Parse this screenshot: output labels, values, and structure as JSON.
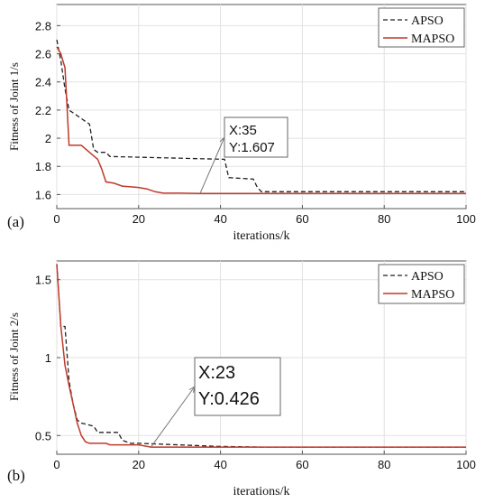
{
  "chart_data": [
    {
      "type": "line",
      "panel_label": "(a)",
      "xlabel": "iterations/k",
      "ylabel": "Fitness of Joint 1/s",
      "xlim": [
        0,
        100
      ],
      "ylim": [
        1.5,
        2.95
      ],
      "xticks": [
        0,
        20,
        40,
        60,
        80,
        100
      ],
      "yticks": [
        1.6,
        1.8,
        2.0,
        2.2,
        2.4,
        2.6,
        2.8
      ],
      "xtick_labels": [
        "0",
        "20",
        "40",
        "60",
        "80",
        "100"
      ],
      "ytick_labels": [
        "1.6",
        "1.8",
        "2",
        "2.2",
        "2.4",
        "2.6",
        "2.8"
      ],
      "grid": true,
      "legend_position": "top-right",
      "series": [
        {
          "name": "APSO",
          "color": "#222222",
          "dash": "dashed",
          "x": [
            0,
            1,
            2,
            3,
            8,
            9,
            10,
            12,
            13,
            41,
            42,
            48,
            49,
            50,
            100
          ],
          "y": [
            2.7,
            2.55,
            2.35,
            2.2,
            2.1,
            1.92,
            1.9,
            1.9,
            1.87,
            1.85,
            1.72,
            1.71,
            1.65,
            1.62,
            1.62
          ]
        },
        {
          "name": "MAPSO",
          "color": "#c0392b",
          "dash": "solid",
          "x": [
            0,
            1,
            2,
            3,
            6,
            8,
            10,
            11,
            12,
            14,
            16,
            20,
            22,
            24,
            26,
            30,
            35,
            100
          ],
          "y": [
            2.65,
            2.6,
            2.5,
            1.95,
            1.95,
            1.9,
            1.85,
            1.78,
            1.69,
            1.68,
            1.66,
            1.65,
            1.64,
            1.62,
            1.61,
            1.61,
            1.607,
            1.607
          ]
        }
      ],
      "annotation": {
        "x": 35,
        "y": 1.607,
        "line1": "X:35",
        "line2": "Y:1.607"
      }
    },
    {
      "type": "line",
      "panel_label": "(b)",
      "xlabel": "iterations/k",
      "ylabel": "Fitness of Joint 2/s",
      "xlim": [
        0,
        100
      ],
      "ylim": [
        0.38,
        1.62
      ],
      "xticks": [
        0,
        20,
        40,
        60,
        80,
        100
      ],
      "yticks": [
        0.5,
        1.0,
        1.5
      ],
      "xtick_labels": [
        "0",
        "20",
        "40",
        "60",
        "80",
        "100"
      ],
      "ytick_labels": [
        "0.5",
        "1",
        "1.5"
      ],
      "grid": true,
      "legend_position": "top-right",
      "series": [
        {
          "name": "APSO",
          "color": "#222222",
          "dash": "dashed",
          "x": [
            0,
            1,
            2,
            3,
            4,
            5,
            6,
            9,
            10,
            15,
            16,
            18,
            20,
            40,
            50,
            100
          ],
          "y": [
            1.6,
            1.2,
            1.2,
            0.85,
            0.7,
            0.6,
            0.58,
            0.56,
            0.52,
            0.52,
            0.47,
            0.45,
            0.45,
            0.43,
            0.426,
            0.426
          ]
        },
        {
          "name": "MAPSO",
          "color": "#c0392b",
          "dash": "solid",
          "x": [
            0,
            1,
            2,
            3,
            4,
            5,
            6,
            7,
            8,
            12,
            13,
            20,
            23,
            100
          ],
          "y": [
            1.6,
            1.2,
            0.95,
            0.82,
            0.7,
            0.58,
            0.5,
            0.46,
            0.45,
            0.45,
            0.44,
            0.44,
            0.426,
            0.426
          ]
        }
      ],
      "annotation": {
        "x": 23,
        "y": 0.426,
        "line1": "X:23",
        "line2": "Y:0.426"
      }
    }
  ]
}
